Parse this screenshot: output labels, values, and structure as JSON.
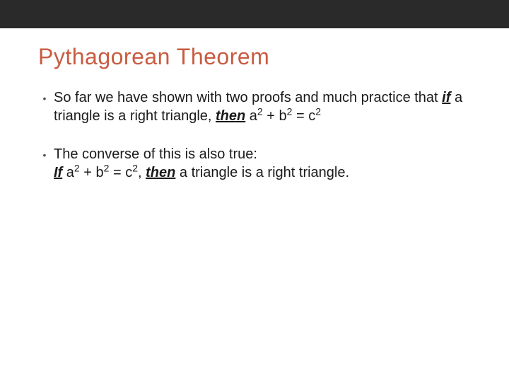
{
  "layout": {
    "top_bar_height": 40,
    "title_left_pad": 54,
    "title_top_pad": 22,
    "content_left_pad": 54,
    "content_top_pad": 26,
    "bullet_indent": 18,
    "bullet_gap": 4,
    "item_spacing": 28
  },
  "colors": {
    "top_bar": "#2a2a2a",
    "title": "#c85c41",
    "body_text": "#1a1a1a",
    "bullet": "#555555",
    "background": "#ffffff"
  },
  "typography": {
    "title_fontsize": 32,
    "body_fontsize": 20,
    "bullet_fontsize": 14,
    "line_height": 1.3
  },
  "title": "Pythagorean Theorem",
  "bullets": [
    {
      "pre1": "So far we have shown with two proofs and much practice that ",
      "kw1": "if",
      "mid1": " a triangle is a right triangle, ",
      "kw2": "then",
      "post1": " a",
      "sup1": "2",
      "post2": " + b",
      "sup2": "2",
      "post3": " = c",
      "sup3": "2"
    },
    {
      "pre1": "The converse of this is also true:",
      "br": true,
      "kw1": "If",
      "mid1": " a",
      "sup1": "2",
      "mid2": " + b",
      "sup2": "2",
      "mid3": " = c",
      "sup3": "2",
      "mid4": ", ",
      "kw2": "then",
      "post1": " a triangle is a right triangle."
    }
  ],
  "bullet_char": "•"
}
